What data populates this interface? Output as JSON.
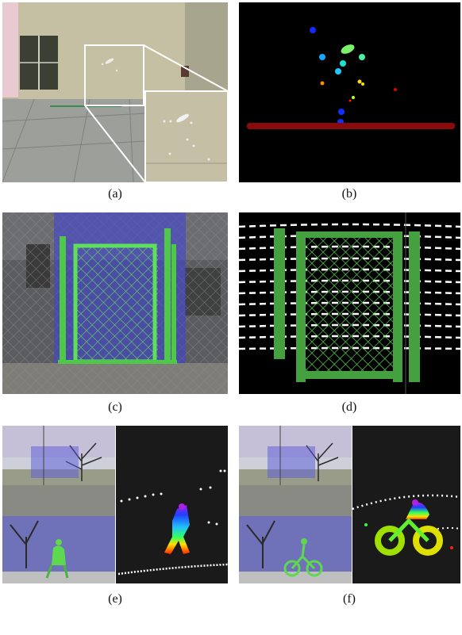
{
  "figure": {
    "panels": [
      {
        "id": "a",
        "caption": "(a)"
      },
      {
        "id": "b",
        "caption": "(b)"
      },
      {
        "id": "c",
        "caption": "(c)"
      },
      {
        "id": "d",
        "caption": "(d)"
      },
      {
        "id": "e",
        "caption": "(e)"
      },
      {
        "id": "f",
        "caption": "(f)"
      }
    ]
  }
}
